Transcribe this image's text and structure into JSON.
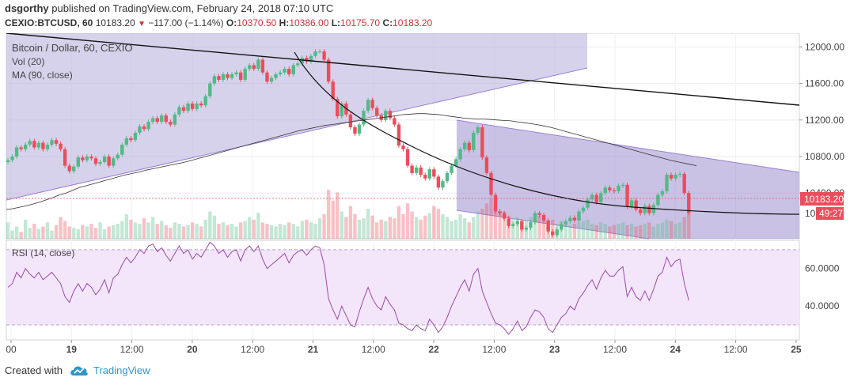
{
  "header": {
    "author": "dsgorthy",
    "published_text": "published on TradingView.com, February 24, 2018 07:10 UTC",
    "symbol": "CEXIO:BTCUSD, 60",
    "last": "10183.20",
    "change": "−117.00 (−1.14%)",
    "open_label": "O:",
    "open": "10370.50",
    "high_label": "H:",
    "high": "10386.00",
    "low_label": "L:",
    "low": "10175.70",
    "close_label": "C:",
    "close": "10183.20"
  },
  "legend": {
    "title": "Bitcoin / Dollar, 60, CEXIO",
    "vol": "Vol (20)",
    "ma": "MA (90, close)",
    "rsi": "RSI (14, close)"
  },
  "price_axis": {
    "ticks": [
      "12000.00",
      "11600.00",
      "11200.00",
      "10800.00",
      "10400.00"
    ],
    "last_price_badge": "10183.20",
    "countdown_badge": "49:27",
    "partial_label": "10"
  },
  "rsi_axis": {
    "ticks": [
      "60.0000",
      "40.0000"
    ]
  },
  "time_axis": {
    "labels": [
      "00",
      "19",
      "12:00",
      "20",
      "12:00",
      "21",
      "12:00",
      "22",
      "12:00",
      "23",
      "12:00",
      "24",
      "12:00",
      "25"
    ]
  },
  "footer": {
    "created_with": "Created with",
    "brand": "TradingView"
  },
  "colors": {
    "up": "#53b987",
    "down": "#eb4d5c",
    "channel_fill": "#b7addb",
    "channel_line": "#9b7fd1",
    "rsi_bg": "#f3e6fb",
    "rsi_line": "#9b4aa6",
    "brand": "#2f95c9"
  },
  "chart_data": {
    "type": "candlestick",
    "symbol": "CEXIO:BTCUSD",
    "interval": "60",
    "price_range": [
      9900,
      12150
    ],
    "rsi_range": [
      22,
      75
    ],
    "rsi_levels": [
      30,
      70
    ],
    "x_labels": [
      "00",
      "19",
      "12:00",
      "20",
      "12:00",
      "21",
      "12:00",
      "22",
      "12:00",
      "23",
      "12:00",
      "24",
      "12:00",
      "25"
    ],
    "candles_close": [
      10760,
      10800,
      10900,
      10880,
      10930,
      10970,
      10900,
      10950,
      10880,
      10930,
      10980,
      10940,
      10880,
      10700,
      10640,
      10690,
      10790,
      10760,
      10800,
      10780,
      10720,
      10740,
      10800,
      10700,
      10780,
      10820,
      10930,
      11000,
      10980,
      11060,
      11130,
      11100,
      11180,
      11220,
      11180,
      11250,
      11180,
      11150,
      11260,
      11340,
      11300,
      11380,
      11320,
      11380,
      11360,
      11460,
      11600,
      11680,
      11640,
      11700,
      11660,
      11700,
      11720,
      11640,
      11760,
      11800,
      11760,
      11860,
      11720,
      11620,
      11660,
      11700,
      11720,
      11760,
      11700,
      11800,
      11820,
      11880,
      11840,
      11900,
      11950,
      11950,
      11860,
      11620,
      11430,
      11240,
      11380,
      11260,
      11120,
      11050,
      11150,
      11300,
      11420,
      11330,
      11250,
      11200,
      11300,
      11220,
      11150,
      10920,
      10880,
      10700,
      10620,
      10680,
      10600,
      10560,
      10660,
      10580,
      10460,
      10530,
      10620,
      10700,
      10770,
      10880,
      10950,
      10870,
      11060,
      11120,
      10790,
      10620,
      10380,
      10200,
      10180,
      10120,
      10040,
      10060,
      10090,
      10000,
      10020,
      10080,
      10180,
      10160,
      10100,
      9980,
      9940,
      10000,
      10060,
      10090,
      10130,
      10100,
      10200,
      10240,
      10330,
      10380,
      10300,
      10400,
      10460,
      10430,
      10420,
      10480,
      10490,
      10250,
      10320,
      10220,
      10180,
      10260,
      10180,
      10270,
      10380,
      10420,
      10600,
      10560,
      10600,
      10610,
      10400,
      10183.2
    ],
    "ma90_close": [
      10220,
      10230,
      10245,
      10260,
      10280,
      10300,
      10325,
      10350,
      10380,
      10400,
      10430,
      10460,
      10480,
      10500,
      10520,
      10540,
      10560,
      10580,
      10600,
      10615,
      10630,
      10650,
      10665,
      10680,
      10695,
      10710,
      10725,
      10740,
      10760,
      10780,
      10800,
      10820,
      10840,
      10860,
      10880,
      10900,
      10920,
      10940,
      10960,
      10980,
      11000,
      11020,
      11040,
      11060,
      11080,
      11095,
      11110,
      11125,
      11140,
      11150,
      11160,
      11170,
      11180,
      11190,
      11200,
      11210,
      11220,
      11230,
      11240,
      11250,
      11260,
      11265,
      11270,
      11270,
      11265,
      11260,
      11250,
      11240,
      11230,
      11220,
      11215,
      11210,
      11210,
      11205,
      11200,
      11195,
      11190,
      11180,
      11170,
      11160,
      11150,
      11135,
      11120,
      11100,
      11080,
      11060,
      11040,
      11020,
      11000,
      10980,
      10960,
      10940,
      10920,
      10900,
      10880,
      10860,
      10840,
      10820,
      10800,
      10780,
      10760,
      10745,
      10730,
      10715,
      10700
    ],
    "volume": [
      60,
      30,
      45,
      25,
      70,
      40,
      55,
      35,
      45,
      60,
      30,
      50,
      80,
      65,
      45,
      40,
      35,
      50,
      45,
      55,
      40,
      60,
      35,
      45,
      50,
      55,
      65,
      90,
      70,
      60,
      55,
      75,
      60,
      80,
      55,
      65,
      50,
      40,
      60,
      55,
      45,
      50,
      60,
      55,
      45,
      70,
      100,
      85,
      55,
      60,
      50,
      55,
      45,
      60,
      65,
      80,
      70,
      95,
      60,
      55,
      50,
      45,
      55,
      50,
      60,
      55,
      45,
      65,
      70,
      60,
      55,
      75,
      90,
      180,
      140,
      170,
      100,
      80,
      120,
      90,
      70,
      75,
      110,
      85,
      60,
      70,
      65,
      80,
      75,
      120,
      90,
      130,
      100,
      80,
      70,
      85,
      95,
      120,
      110,
      90,
      80,
      65,
      70,
      90,
      75,
      60,
      80,
      100,
      110,
      130,
      150,
      120,
      95,
      100,
      85,
      75,
      80,
      70,
      65,
      80,
      90,
      85,
      75,
      60,
      70,
      55,
      65,
      60,
      50,
      55,
      60,
      65,
      70,
      55,
      50,
      60,
      55,
      45,
      50,
      55,
      60,
      50,
      55,
      45,
      50,
      55,
      60,
      45,
      55,
      60,
      70,
      65,
      55,
      60,
      80,
      95
    ],
    "rsi": [
      50,
      52,
      58,
      55,
      60,
      57,
      55,
      58,
      54,
      56,
      58,
      55,
      52,
      45,
      42,
      48,
      52,
      48,
      52,
      50,
      46,
      49,
      54,
      47,
      55,
      57,
      62,
      66,
      63,
      66,
      70,
      68,
      72,
      73,
      69,
      71,
      67,
      64,
      68,
      72,
      68,
      70,
      65,
      68,
      66,
      70,
      74,
      72,
      68,
      70,
      66,
      69,
      70,
      64,
      70,
      72,
      69,
      72,
      65,
      60,
      62,
      64,
      66,
      68,
      63,
      67,
      69,
      70,
      67,
      70,
      72,
      71,
      62,
      44,
      38,
      33,
      40,
      35,
      30,
      29,
      37,
      44,
      50,
      44,
      40,
      38,
      45,
      41,
      38,
      31,
      30,
      28,
      27,
      30,
      28,
      27,
      33,
      30,
      26,
      29,
      34,
      40,
      45,
      50,
      54,
      48,
      57,
      60,
      48,
      42,
      36,
      31,
      30,
      28,
      25,
      28,
      32,
      27,
      29,
      34,
      38,
      37,
      34,
      28,
      26,
      30,
      34,
      36,
      40,
      38,
      44,
      47,
      51,
      54,
      49,
      55,
      59,
      56,
      56,
      59,
      61,
      45,
      50,
      45,
      43,
      48,
      43,
      49,
      56,
      58,
      66,
      61,
      64,
      65,
      52,
      43
    ]
  }
}
